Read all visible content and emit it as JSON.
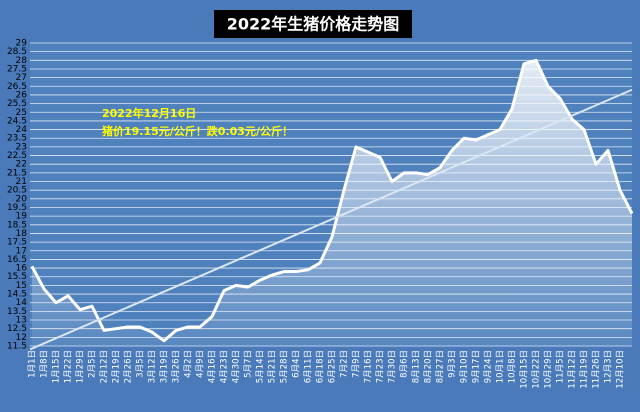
{
  "chart_data": {
    "type": "line",
    "title": "2022年生猪价格走势图",
    "annotations": [
      "2022年12月16日",
      "猪价19.15元/公斤！跌0.03元/公斤！"
    ],
    "categories": [
      "1月1日",
      "1月8日",
      "1月15日",
      "1月22日",
      "1月29日",
      "2月5日",
      "2月12日",
      "2月19日",
      "2月26日",
      "3月5日",
      "3月12日",
      "3月19日",
      "3月26日",
      "4月2日",
      "4月9日",
      "4月16日",
      "4月23日",
      "4月30日",
      "5月7日",
      "5月14日",
      "5月21日",
      "5月28日",
      "6月4日",
      "6月11日",
      "6月18日",
      "6月25日",
      "7月2日",
      "7月9日",
      "7月16日",
      "7月23日",
      "7月30日",
      "8月6日",
      "8月13日",
      "8月20日",
      "8月27日",
      "9月3日",
      "9月10日",
      "9月17日",
      "9月24日",
      "10月1日",
      "10月8日",
      "10月15日",
      "10月22日",
      "10月29日",
      "11月5日",
      "11月12日",
      "11月19日",
      "11月26日",
      "12月3日",
      "12月10日",
      null
    ],
    "series": [
      {
        "name": "猪价",
        "color": "#ffffff",
        "values": [
          16.1,
          14.8,
          14.0,
          14.4,
          13.6,
          13.8,
          12.4,
          12.5,
          12.6,
          12.6,
          12.3,
          11.8,
          12.4,
          12.6,
          12.6,
          13.2,
          14.7,
          15.0,
          14.9,
          15.3,
          15.6,
          15.8,
          15.8,
          15.9,
          16.3,
          17.8,
          20.5,
          23.0,
          22.7,
          22.4,
          21.0,
          21.5,
          21.5,
          21.4,
          21.8,
          22.8,
          23.5,
          23.4,
          23.7,
          24.0,
          25.2,
          27.8,
          28.0,
          26.5,
          25.8,
          24.6,
          24.0,
          22.0,
          22.8,
          20.5,
          19.15
        ]
      }
    ],
    "trendline": [
      11.3,
      26.3
    ],
    "ylim": [
      11.5,
      29
    ],
    "yticks": [
      11.5,
      12,
      12.5,
      13,
      13.5,
      14,
      14.5,
      15,
      15.5,
      16,
      16.5,
      17,
      17.5,
      18,
      18.5,
      19,
      19.5,
      20,
      20.5,
      21,
      21.5,
      22,
      22.5,
      23,
      23.5,
      24,
      24.5,
      25,
      25.5,
      26,
      26.5,
      27,
      27.5,
      28,
      28.5,
      29
    ],
    "grid": true
  }
}
